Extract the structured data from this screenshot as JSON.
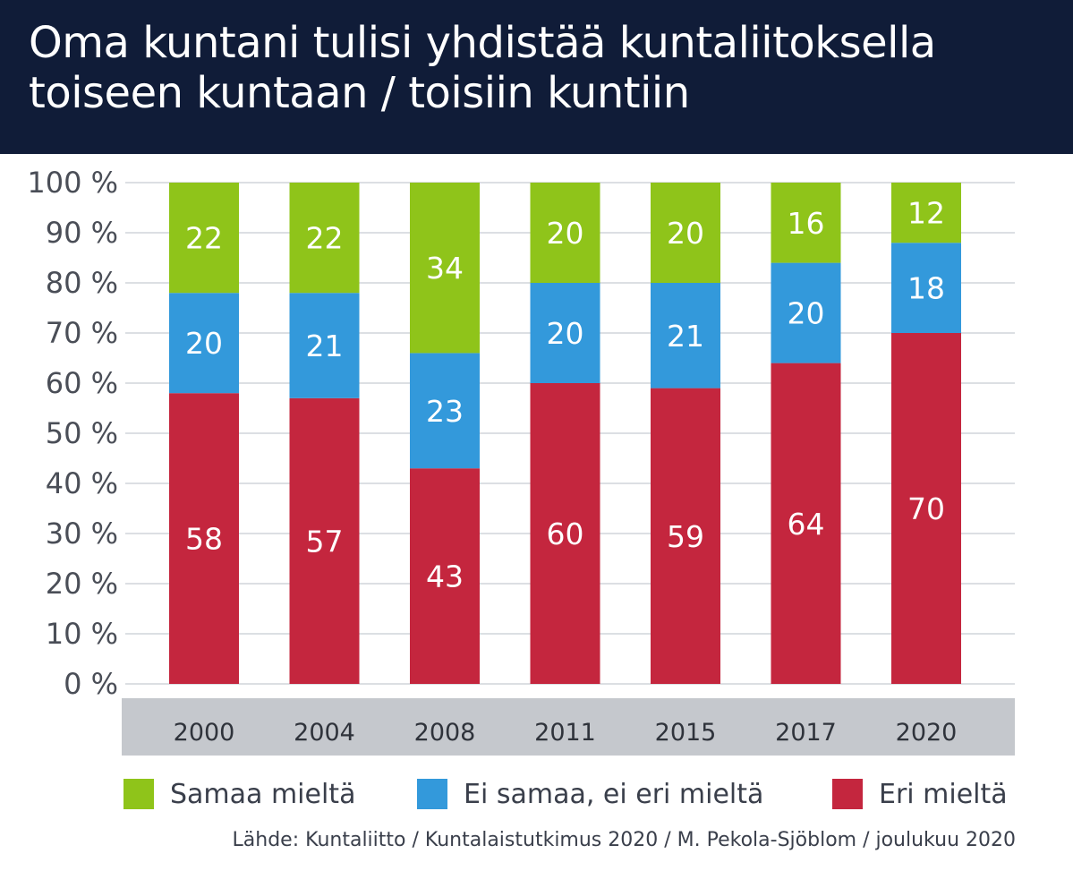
{
  "chart_data": {
    "type": "bar",
    "stacked": true,
    "title": "Oma kuntani tulisi yhdistää kuntaliitoksella toiseen kuntaan / toisiin kuntiin",
    "categories": [
      "2000",
      "2004",
      "2008",
      "2011",
      "2015",
      "2017",
      "2020"
    ],
    "series": [
      {
        "name": "Eri mieltä",
        "color": "#c4263e",
        "values": [
          58,
          57,
          43,
          60,
          59,
          64,
          70
        ]
      },
      {
        "name": "Ei samaa, ei eri mieltä",
        "color": "#3399db",
        "values": [
          20,
          21,
          23,
          20,
          21,
          20,
          18
        ]
      },
      {
        "name": "Samaa mieltä",
        "color": "#8fc41a",
        "values": [
          22,
          22,
          34,
          20,
          20,
          16,
          12
        ]
      }
    ],
    "yticks": [
      "0 %",
      "10 %",
      "20 %",
      "30 %",
      "40 %",
      "50 %",
      "60 %",
      "70 %",
      "80 %",
      "90 %",
      "100 %"
    ],
    "ylim": [
      0,
      100
    ],
    "grid": true,
    "legend_position": "bottom",
    "xlabel": "",
    "ylabel": ""
  },
  "legend": [
    {
      "label": "Samaa mieltä",
      "color": "#8fc41a"
    },
    {
      "label": "Ei samaa, ei eri mieltä",
      "color": "#3399db"
    },
    {
      "label": "Eri mieltä",
      "color": "#c4263e"
    }
  ],
  "source": "Lähde: Kuntaliitto / Kuntalaistutkimus 2020 / M. Pekola-Sjöblom / joulukuu 2020",
  "colors": {
    "header_bg": "#101c38",
    "axis_band": "#c5c8cd",
    "gridline": "#dcdfe3",
    "tick_text": "#4a4e57",
    "bar_label": "#ffffff"
  }
}
